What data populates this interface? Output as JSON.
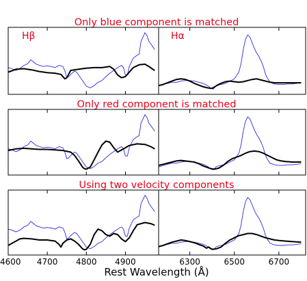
{
  "chart_data": {
    "type": "line",
    "xlabel": "Rest Wavelength (Å)",
    "rows": [
      {
        "title": "Only blue component is matched"
      },
      {
        "title": "Only red component is matched"
      },
      {
        "title": "Using two velocity components"
      }
    ],
    "columns": [
      {
        "label": "Hβ",
        "xlim": [
          4600,
          4985
        ],
        "ticks": [
          4600,
          4700,
          4800,
          4900
        ],
        "tick_labels": [
          "4600",
          "4700",
          "4800",
          "4900"
        ],
        "ylim": [
          0,
          1
        ],
        "observed": [
          [
            4600,
            0.38
          ],
          [
            4610,
            0.36
          ],
          [
            4620,
            0.33
          ],
          [
            4630,
            0.36
          ],
          [
            4640,
            0.42
          ],
          [
            4650,
            0.45
          ],
          [
            4658,
            0.52
          ],
          [
            4665,
            0.48
          ],
          [
            4672,
            0.44
          ],
          [
            4680,
            0.42
          ],
          [
            4690,
            0.4
          ],
          [
            4700,
            0.41
          ],
          [
            4710,
            0.4
          ],
          [
            4720,
            0.38
          ],
          [
            4730,
            0.42
          ],
          [
            4740,
            0.4
          ],
          [
            4745,
            0.32
          ],
          [
            4750,
            0.2
          ],
          [
            4755,
            0.22
          ],
          [
            4760,
            0.26
          ],
          [
            4770,
            0.32
          ],
          [
            4775,
            0.3
          ],
          [
            4780,
            0.25
          ],
          [
            4790,
            0.15
          ],
          [
            4800,
            0.05
          ],
          [
            4810,
            0.02
          ],
          [
            4820,
            0.06
          ],
          [
            4830,
            0.12
          ],
          [
            4840,
            0.15
          ],
          [
            4850,
            0.22
          ],
          [
            4860,
            0.28
          ],
          [
            4870,
            0.33
          ],
          [
            4880,
            0.38
          ],
          [
            4890,
            0.42
          ],
          [
            4895,
            0.38
          ],
          [
            4900,
            0.25
          ],
          [
            4905,
            0.25
          ],
          [
            4910,
            0.4
          ],
          [
            4920,
            0.55
          ],
          [
            4930,
            0.6
          ],
          [
            4935,
            0.62
          ],
          [
            4940,
            0.85
          ],
          [
            4945,
            0.92
          ],
          [
            4950,
            1.0
          ],
          [
            4955,
            0.95
          ],
          [
            4960,
            0.85
          ],
          [
            4965,
            0.8
          ],
          [
            4970,
            0.75
          ],
          [
            4975,
            0.7
          ]
        ],
        "models": [
          [
            [
              4600,
              0.3
            ],
            [
              4620,
              0.35
            ],
            [
              4640,
              0.36
            ],
            [
              4660,
              0.34
            ],
            [
              4680,
              0.31
            ],
            [
              4700,
              0.29
            ],
            [
              4720,
              0.28
            ],
            [
              4735,
              0.26
            ],
            [
              4745,
              0.18
            ],
            [
              4750,
              0.2
            ],
            [
              4760,
              0.33
            ],
            [
              4780,
              0.35
            ],
            [
              4800,
              0.37
            ],
            [
              4820,
              0.38
            ],
            [
              4840,
              0.38
            ],
            [
              4860,
              0.4
            ],
            [
              4870,
              0.35
            ],
            [
              4880,
              0.25
            ],
            [
              4890,
              0.2
            ],
            [
              4900,
              0.22
            ],
            [
              4910,
              0.3
            ],
            [
              4920,
              0.38
            ],
            [
              4935,
              0.43
            ],
            [
              4950,
              0.44
            ],
            [
              4960,
              0.4
            ],
            [
              4970,
              0.35
            ],
            [
              4975,
              0.33
            ]
          ],
          [
            [
              4600,
              0.35
            ],
            [
              4620,
              0.38
            ],
            [
              4640,
              0.39
            ],
            [
              4660,
              0.38
            ],
            [
              4680,
              0.37
            ],
            [
              4700,
              0.37
            ],
            [
              4720,
              0.36
            ],
            [
              4740,
              0.35
            ],
            [
              4760,
              0.32
            ],
            [
              4770,
              0.26
            ],
            [
              4780,
              0.16
            ],
            [
              4790,
              0.05
            ],
            [
              4795,
              0.02
            ],
            [
              4800,
              0.01
            ],
            [
              4810,
              0.05
            ],
            [
              4820,
              0.18
            ],
            [
              4830,
              0.32
            ],
            [
              4840,
              0.45
            ],
            [
              4850,
              0.52
            ],
            [
              4860,
              0.5
            ],
            [
              4870,
              0.4
            ],
            [
              4880,
              0.32
            ],
            [
              4895,
              0.38
            ],
            [
              4910,
              0.44
            ],
            [
              4930,
              0.47
            ],
            [
              4950,
              0.46
            ],
            [
              4965,
              0.42
            ],
            [
              4975,
              0.38
            ]
          ],
          [
            [
              4600,
              0.08
            ],
            [
              4610,
              0.12
            ],
            [
              4620,
              0.16
            ],
            [
              4630,
              0.2
            ],
            [
              4640,
              0.21
            ],
            [
              4660,
              0.2
            ],
            [
              4680,
              0.18
            ],
            [
              4700,
              0.18
            ],
            [
              4720,
              0.16
            ],
            [
              4730,
              0.1
            ],
            [
              4735,
              0.05
            ],
            [
              4740,
              0.12
            ],
            [
              4750,
              0.18
            ],
            [
              4760,
              0.2
            ],
            [
              4770,
              0.16
            ],
            [
              4780,
              0.1
            ],
            [
              4790,
              0.02
            ],
            [
              4795,
              0.0
            ],
            [
              4800,
              0.01
            ],
            [
              4810,
              0.1
            ],
            [
              4820,
              0.28
            ],
            [
              4830,
              0.38
            ],
            [
              4840,
              0.35
            ],
            [
              4850,
              0.28
            ],
            [
              4860,
              0.25
            ],
            [
              4870,
              0.3
            ],
            [
              4880,
              0.28
            ],
            [
              4890,
              0.2
            ],
            [
              4900,
              0.15
            ],
            [
              4910,
              0.22
            ],
            [
              4920,
              0.35
            ],
            [
              4930,
              0.46
            ],
            [
              4950,
              0.5
            ],
            [
              4965,
              0.48
            ],
            [
              4975,
              0.45
            ]
          ]
        ]
      },
      {
        "label": "Hα",
        "xlim": [
          6160,
          6820
        ],
        "ticks": [
          6300,
          6500,
          6700
        ],
        "tick_labels": [
          "6300",
          "6500",
          "6700"
        ],
        "ylim": [
          0,
          1
        ],
        "observed": [
          [
            6160,
            0.05
          ],
          [
            6180,
            0.08
          ],
          [
            6200,
            0.1
          ],
          [
            6220,
            0.12
          ],
          [
            6240,
            0.12
          ],
          [
            6260,
            0.14
          ],
          [
            6280,
            0.15
          ],
          [
            6300,
            0.15
          ],
          [
            6320,
            0.14
          ],
          [
            6340,
            0.12
          ],
          [
            6360,
            0.1
          ],
          [
            6380,
            0.06
          ],
          [
            6395,
            0.01
          ],
          [
            6405,
            0.0
          ],
          [
            6420,
            0.06
          ],
          [
            6440,
            0.08
          ],
          [
            6460,
            0.1
          ],
          [
            6480,
            0.14
          ],
          [
            6500,
            0.18
          ],
          [
            6520,
            0.3
          ],
          [
            6530,
            0.45
          ],
          [
            6540,
            0.7
          ],
          [
            6550,
            0.88
          ],
          [
            6560,
            0.96
          ],
          [
            6570,
            0.92
          ],
          [
            6580,
            0.82
          ],
          [
            6590,
            0.72
          ],
          [
            6600,
            0.64
          ],
          [
            6610,
            0.58
          ],
          [
            6620,
            0.5
          ],
          [
            6630,
            0.4
          ],
          [
            6640,
            0.26
          ],
          [
            6650,
            0.18
          ],
          [
            6660,
            0.12
          ],
          [
            6680,
            0.09
          ],
          [
            6700,
            0.08
          ],
          [
            6720,
            0.08
          ],
          [
            6740,
            0.09
          ],
          [
            6760,
            0.09
          ],
          [
            6780,
            0.1
          ],
          [
            6800,
            0.11
          ]
        ],
        "models": [
          [
            [
              6160,
              0.06
            ],
            [
              6180,
              0.08
            ],
            [
              6200,
              0.11
            ],
            [
              6220,
              0.14
            ],
            [
              6240,
              0.17
            ],
            [
              6260,
              0.18
            ],
            [
              6280,
              0.17
            ],
            [
              6300,
              0.14
            ],
            [
              6320,
              0.1
            ],
            [
              6340,
              0.07
            ],
            [
              6360,
              0.04
            ],
            [
              6380,
              0.02
            ],
            [
              6395,
              0.01
            ],
            [
              6405,
              0.02
            ],
            [
              6420,
              0.06
            ],
            [
              6440,
              0.1
            ],
            [
              6460,
              0.13
            ],
            [
              6480,
              0.14
            ],
            [
              6500,
              0.13
            ],
            [
              6520,
              0.12
            ],
            [
              6540,
              0.13
            ],
            [
              6560,
              0.15
            ],
            [
              6580,
              0.17
            ],
            [
              6600,
              0.18
            ],
            [
              6620,
              0.16
            ],
            [
              6640,
              0.14
            ],
            [
              6660,
              0.12
            ],
            [
              6680,
              0.11
            ],
            [
              6700,
              0.11
            ],
            [
              6720,
              0.11
            ],
            [
              6740,
              0.11
            ],
            [
              6760,
              0.11
            ],
            [
              6780,
              0.11
            ],
            [
              6800,
              0.11
            ]
          ],
          [
            [
              6160,
              0.08
            ],
            [
              6180,
              0.1
            ],
            [
              6200,
              0.12
            ],
            [
              6220,
              0.14
            ],
            [
              6240,
              0.16
            ],
            [
              6260,
              0.17
            ],
            [
              6280,
              0.16
            ],
            [
              6300,
              0.15
            ],
            [
              6320,
              0.14
            ],
            [
              6340,
              0.11
            ],
            [
              6360,
              0.07
            ],
            [
              6380,
              0.04
            ],
            [
              6395,
              0.02
            ],
            [
              6410,
              0.01
            ],
            [
              6430,
              0.03
            ],
            [
              6450,
              0.08
            ],
            [
              6470,
              0.15
            ],
            [
              6490,
              0.2
            ],
            [
              6510,
              0.23
            ],
            [
              6530,
              0.26
            ],
            [
              6550,
              0.3
            ],
            [
              6570,
              0.33
            ],
            [
              6590,
              0.34
            ],
            [
              6610,
              0.33
            ],
            [
              6630,
              0.3
            ],
            [
              6650,
              0.26
            ],
            [
              6670,
              0.22
            ],
            [
              6690,
              0.18
            ],
            [
              6710,
              0.16
            ],
            [
              6730,
              0.15
            ],
            [
              6760,
              0.14
            ],
            [
              6790,
              0.14
            ],
            [
              6800,
              0.14
            ]
          ],
          [
            [
              6160,
              0.06
            ],
            [
              6180,
              0.08
            ],
            [
              6200,
              0.11
            ],
            [
              6220,
              0.14
            ],
            [
              6240,
              0.16
            ],
            [
              6260,
              0.18
            ],
            [
              6280,
              0.17
            ],
            [
              6300,
              0.15
            ],
            [
              6320,
              0.13
            ],
            [
              6340,
              0.1
            ],
            [
              6360,
              0.07
            ],
            [
              6375,
              0.03
            ],
            [
              6385,
              0.05
            ],
            [
              6395,
              0.02
            ],
            [
              6405,
              0.01
            ],
            [
              6420,
              0.02
            ],
            [
              6440,
              0.05
            ],
            [
              6460,
              0.12
            ],
            [
              6480,
              0.18
            ],
            [
              6500,
              0.22
            ],
            [
              6520,
              0.26
            ],
            [
              6540,
              0.28
            ],
            [
              6560,
              0.3
            ],
            [
              6580,
              0.3
            ],
            [
              6600,
              0.28
            ],
            [
              6620,
              0.25
            ],
            [
              6640,
              0.22
            ],
            [
              6660,
              0.2
            ],
            [
              6680,
              0.18
            ],
            [
              6700,
              0.17
            ],
            [
              6730,
              0.16
            ],
            [
              6760,
              0.15
            ],
            [
              6800,
              0.14
            ]
          ]
        ]
      }
    ]
  },
  "colors": {
    "title": "#e8001a",
    "observed": "#2a2ae6",
    "model": "#000000"
  }
}
